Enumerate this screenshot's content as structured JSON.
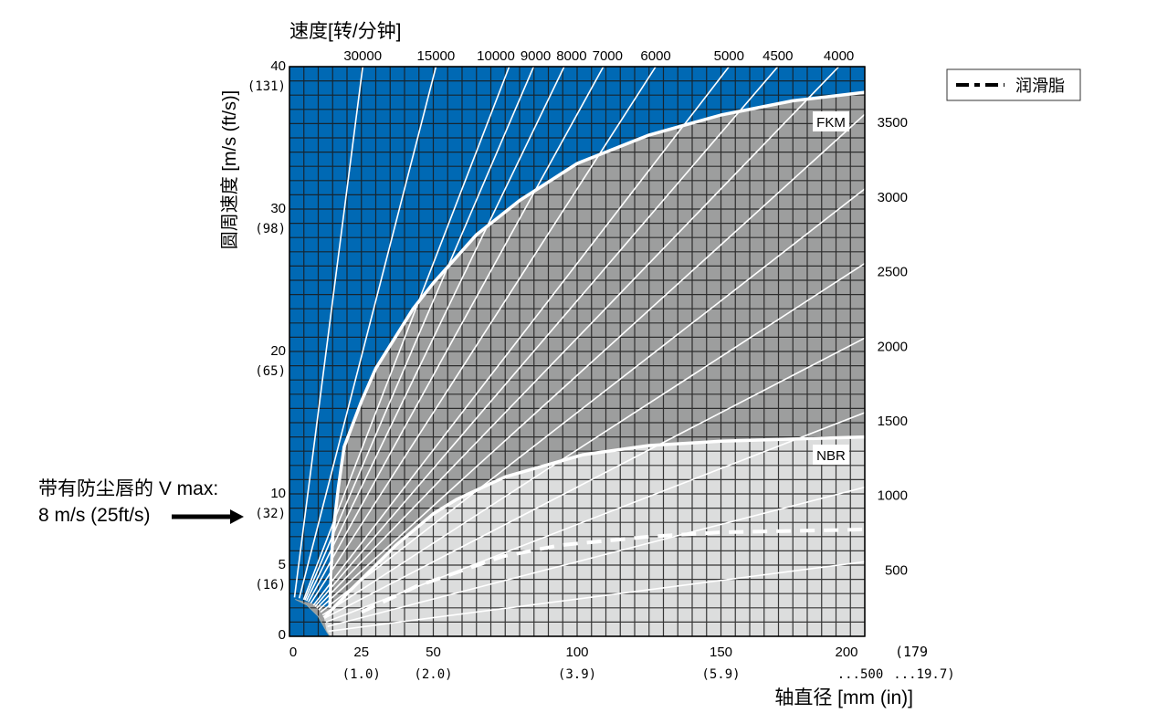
{
  "chart_data": {
    "type": "line",
    "title": "速度[转/分钟]",
    "xlabel": "轴直径  [mm (in)]",
    "ylabel": "圆周速度  [m/s (ft/s)]",
    "xlim": [
      0,
      200
    ],
    "ylim": [
      0,
      40
    ],
    "grid": true,
    "grid_step": {
      "x": 5,
      "y": 1
    },
    "colors": {
      "above_fkm": "#0069b4",
      "fkm": "#9d9e9e",
      "nbr": "#dcdddd",
      "lines": "#ffffff",
      "grid": "#1a1a1a"
    },
    "x_ticks": [
      {
        "value": 0,
        "label": "0",
        "sub": ""
      },
      {
        "value": 25,
        "label": "25",
        "sub": "(1.0)"
      },
      {
        "value": 50,
        "label": "50",
        "sub": "(2.0)"
      },
      {
        "value": 100,
        "label": "100",
        "sub": "(3.9)"
      },
      {
        "value": 150,
        "label": "150",
        "sub": "(5.9)"
      },
      {
        "value": 200,
        "label": "200",
        "sub": "...500"
      }
    ],
    "x_extra": {
      "label": "(179",
      "sub": "...19.7)"
    },
    "y_ticks": [
      {
        "value": 0,
        "label": "0",
        "sub": ""
      },
      {
        "value": 5,
        "label": "5",
        "sub": "(16)"
      },
      {
        "value": 10,
        "label": "10",
        "sub": "(32)"
      },
      {
        "value": 20,
        "label": "20",
        "sub": "(65)"
      },
      {
        "value": 30,
        "label": "30",
        "sub": "(98)"
      },
      {
        "value": 40,
        "label": "40",
        "sub": "(131)"
      }
    ],
    "rpm_lines": [
      30000,
      15000,
      10000,
      9000,
      8000,
      7000,
      6000,
      5000,
      4500,
      4000,
      3500,
      3000,
      2500,
      2000,
      1500,
      1000,
      500
    ],
    "rpm_top_labels": [
      "30000",
      "15000",
      "10000",
      "9000",
      "8000",
      "7000",
      "6000",
      "5000",
      "4500",
      "4000"
    ],
    "rpm_right_labels": [
      "3500",
      "3000",
      "2500",
      "2000",
      "1500",
      "1000",
      "500"
    ],
    "series": [
      {
        "name": "FKM",
        "values": [
          [
            14,
            2
          ],
          [
            15,
            7
          ],
          [
            17,
            10.5
          ],
          [
            19,
            13.3
          ],
          [
            25,
            16.5
          ],
          [
            30,
            18.8
          ],
          [
            43,
            23
          ],
          [
            50,
            24.8
          ],
          [
            65,
            28.2
          ],
          [
            80,
            30.6
          ],
          [
            100,
            33.2
          ],
          [
            125,
            35.2
          ],
          [
            150,
            36.6
          ],
          [
            175,
            37.6
          ],
          [
            200,
            38.2
          ]
        ]
      },
      {
        "name": "NBR",
        "values": [
          [
            12,
            1.3
          ],
          [
            21,
            3.2
          ],
          [
            37,
            6.4
          ],
          [
            50,
            8.6
          ],
          [
            58,
            9.6
          ],
          [
            75,
            11.2
          ],
          [
            102,
            12.75
          ],
          [
            125,
            13.4
          ],
          [
            150,
            13.7
          ],
          [
            200,
            14.0
          ]
        ]
      },
      {
        "name": "润滑脂",
        "dashed": true,
        "values": [
          [
            25,
            1.7
          ],
          [
            44,
            3.5
          ],
          [
            74,
            5.6
          ],
          [
            94,
            6.4
          ],
          [
            125,
            7.0
          ],
          [
            150,
            7.3
          ],
          [
            200,
            7.5
          ]
        ]
      }
    ],
    "legend": {
      "position": "top-right",
      "label": "润滑脂"
    },
    "annotation": {
      "line1": "带有防尘唇的  V max:",
      "line2": "8 m/s (25ft/s)",
      "value_ms": 8,
      "value_fts": 25
    }
  }
}
